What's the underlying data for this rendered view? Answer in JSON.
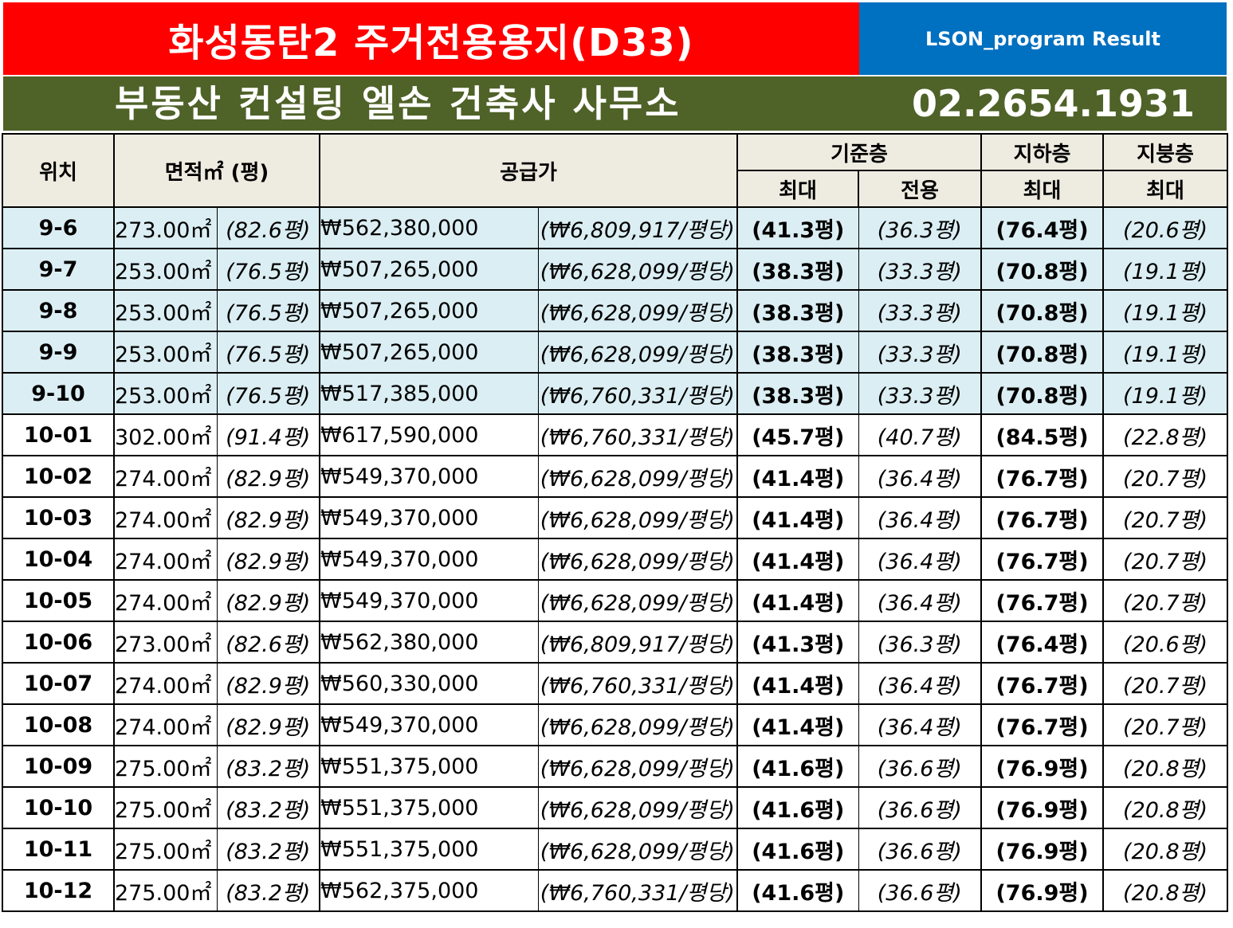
{
  "header": {
    "title": "화성동탄2 주거전용용지(D33)",
    "program": "LSON_program Result",
    "office": "부동산 컨설팅 엘손 건축사 사무소",
    "phone": "02.2654.1931"
  },
  "columns": {
    "location": "위치",
    "area": "면적㎡ (평)",
    "price": "공급가",
    "base_floor": "기준층",
    "basement": "지하층",
    "roof": "지붕층",
    "max": "최대",
    "exclusive": "전용"
  },
  "colors": {
    "title_bg": "#ff0000",
    "program_bg": "#0070c0",
    "office_bg": "#4f6228",
    "header_bg": "#eeece1",
    "highlight_row_bg": "#dbeef3",
    "pyeong_text": "#ff0000"
  },
  "rows": [
    {
      "loc": "9-6",
      "area": "273.00㎡",
      "pyeong": "(82.6평)",
      "price": "₩562,380,000",
      "unit": "(₩6,809,917/평당)",
      "base_max": "(41.3평)",
      "base_exc": "(36.3평)",
      "basement_max": "(76.4평)",
      "roof_max": "(20.6평)"
    },
    {
      "loc": "9-7",
      "area": "253.00㎡",
      "pyeong": "(76.5평)",
      "price": "₩507,265,000",
      "unit": "(₩6,628,099/평당)",
      "base_max": "(38.3평)",
      "base_exc": "(33.3평)",
      "basement_max": "(70.8평)",
      "roof_max": "(19.1평)"
    },
    {
      "loc": "9-8",
      "area": "253.00㎡",
      "pyeong": "(76.5평)",
      "price": "₩507,265,000",
      "unit": "(₩6,628,099/평당)",
      "base_max": "(38.3평)",
      "base_exc": "(33.3평)",
      "basement_max": "(70.8평)",
      "roof_max": "(19.1평)"
    },
    {
      "loc": "9-9",
      "area": "253.00㎡",
      "pyeong": "(76.5평)",
      "price": "₩507,265,000",
      "unit": "(₩6,628,099/평당)",
      "base_max": "(38.3평)",
      "base_exc": "(33.3평)",
      "basement_max": "(70.8평)",
      "roof_max": "(19.1평)"
    },
    {
      "loc": "9-10",
      "area": "253.00㎡",
      "pyeong": "(76.5평)",
      "price": "₩517,385,000",
      "unit": "(₩6,760,331/평당)",
      "base_max": "(38.3평)",
      "base_exc": "(33.3평)",
      "basement_max": "(70.8평)",
      "roof_max": "(19.1평)"
    },
    {
      "loc": "10-01",
      "area": "302.00㎡",
      "pyeong": "(91.4평)",
      "price": "₩617,590,000",
      "unit": "(₩6,760,331/평당)",
      "base_max": "(45.7평)",
      "base_exc": "(40.7평)",
      "basement_max": "(84.5평)",
      "roof_max": "(22.8평)"
    },
    {
      "loc": "10-02",
      "area": "274.00㎡",
      "pyeong": "(82.9평)",
      "price": "₩549,370,000",
      "unit": "(₩6,628,099/평당)",
      "base_max": "(41.4평)",
      "base_exc": "(36.4평)",
      "basement_max": "(76.7평)",
      "roof_max": "(20.7평)"
    },
    {
      "loc": "10-03",
      "area": "274.00㎡",
      "pyeong": "(82.9평)",
      "price": "₩549,370,000",
      "unit": "(₩6,628,099/평당)",
      "base_max": "(41.4평)",
      "base_exc": "(36.4평)",
      "basement_max": "(76.7평)",
      "roof_max": "(20.7평)"
    },
    {
      "loc": "10-04",
      "area": "274.00㎡",
      "pyeong": "(82.9평)",
      "price": "₩549,370,000",
      "unit": "(₩6,628,099/평당)",
      "base_max": "(41.4평)",
      "base_exc": "(36.4평)",
      "basement_max": "(76.7평)",
      "roof_max": "(20.7평)"
    },
    {
      "loc": "10-05",
      "area": "274.00㎡",
      "pyeong": "(82.9평)",
      "price": "₩549,370,000",
      "unit": "(₩6,628,099/평당)",
      "base_max": "(41.4평)",
      "base_exc": "(36.4평)",
      "basement_max": "(76.7평)",
      "roof_max": "(20.7평)"
    },
    {
      "loc": "10-06",
      "area": "273.00㎡",
      "pyeong": "(82.6평)",
      "price": "₩562,380,000",
      "unit": "(₩6,809,917/평당)",
      "base_max": "(41.3평)",
      "base_exc": "(36.3평)",
      "basement_max": "(76.4평)",
      "roof_max": "(20.6평)"
    },
    {
      "loc": "10-07",
      "area": "274.00㎡",
      "pyeong": "(82.9평)",
      "price": "₩560,330,000",
      "unit": "(₩6,760,331/평당)",
      "base_max": "(41.4평)",
      "base_exc": "(36.4평)",
      "basement_max": "(76.7평)",
      "roof_max": "(20.7평)"
    },
    {
      "loc": "10-08",
      "area": "274.00㎡",
      "pyeong": "(82.9평)",
      "price": "₩549,370,000",
      "unit": "(₩6,628,099/평당)",
      "base_max": "(41.4평)",
      "base_exc": "(36.4평)",
      "basement_max": "(76.7평)",
      "roof_max": "(20.7평)"
    },
    {
      "loc": "10-09",
      "area": "275.00㎡",
      "pyeong": "(83.2평)",
      "price": "₩551,375,000",
      "unit": "(₩6,628,099/평당)",
      "base_max": "(41.6평)",
      "base_exc": "(36.6평)",
      "basement_max": "(76.9평)",
      "roof_max": "(20.8평)"
    },
    {
      "loc": "10-10",
      "area": "275.00㎡",
      "pyeong": "(83.2평)",
      "price": "₩551,375,000",
      "unit": "(₩6,628,099/평당)",
      "base_max": "(41.6평)",
      "base_exc": "(36.6평)",
      "basement_max": "(76.9평)",
      "roof_max": "(20.8평)"
    },
    {
      "loc": "10-11",
      "area": "275.00㎡",
      "pyeong": "(83.2평)",
      "price": "₩551,375,000",
      "unit": "(₩6,628,099/평당)",
      "base_max": "(41.6평)",
      "base_exc": "(36.6평)",
      "basement_max": "(76.9평)",
      "roof_max": "(20.8평)"
    },
    {
      "loc": "10-12",
      "area": "275.00㎡",
      "pyeong": "(83.2평)",
      "price": "₩562,375,000",
      "unit": "(₩6,760,331/평당)",
      "base_max": "(41.6평)",
      "base_exc": "(36.6평)",
      "basement_max": "(76.9평)",
      "roof_max": "(20.8평)"
    }
  ],
  "highlighted_rows": [
    "9-6",
    "9-7",
    "9-8",
    "9-9",
    "9-10"
  ]
}
